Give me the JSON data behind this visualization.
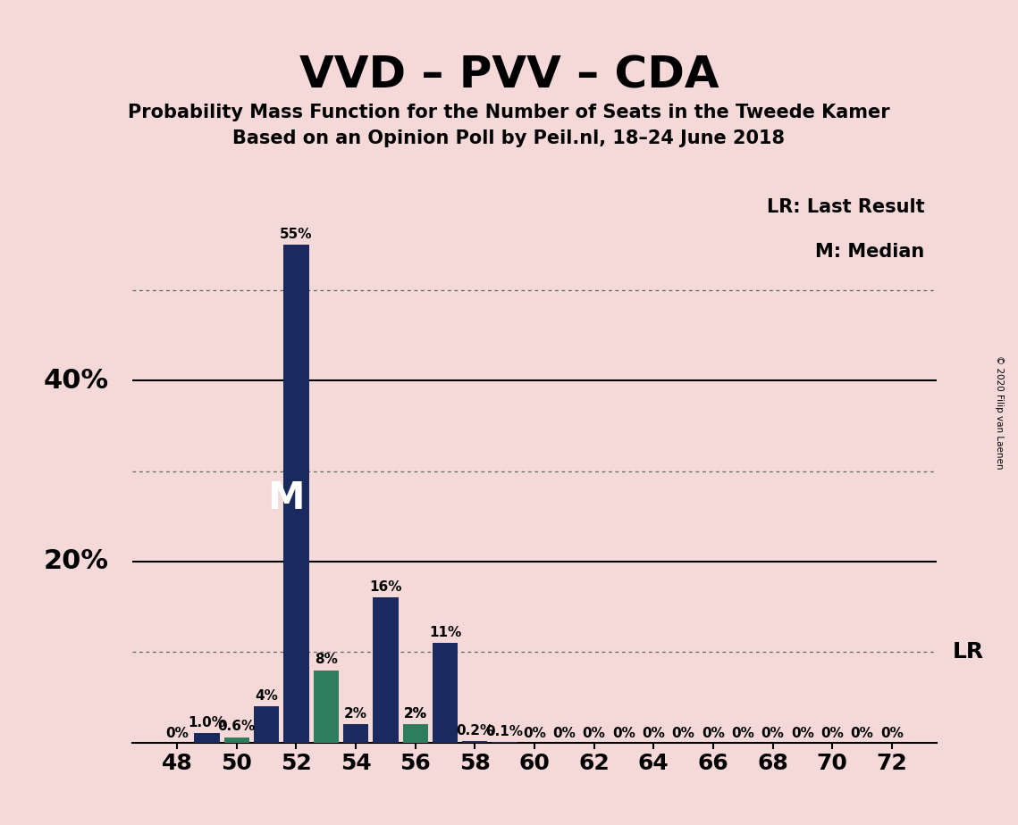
{
  "title": "VVD – PVV – CDA",
  "subtitle1": "Probability Mass Function for the Number of Seats in the Tweede Kamer",
  "subtitle2": "Based on an Opinion Poll by Peil.nl, 18–24 June 2018",
  "copyright": "© 2020 Filip van Laenen",
  "background_color": "#f5d9d9",
  "seats": [
    48,
    49,
    50,
    51,
    52,
    53,
    54,
    55,
    56,
    57,
    58,
    59,
    60,
    61,
    62,
    63,
    64,
    65,
    66,
    67,
    68,
    69,
    70,
    71,
    72
  ],
  "blue_values": [
    0.0,
    1.0,
    0.0,
    4.0,
    55.0,
    0.0,
    2.0,
    16.0,
    2.0,
    11.0,
    0.2,
    0.1,
    0.0,
    0.0,
    0.0,
    0.0,
    0.0,
    0.0,
    0.0,
    0.0,
    0.0,
    0.0,
    0.0,
    0.0,
    0.0
  ],
  "green_values": [
    0.0,
    0.0,
    0.6,
    0.0,
    0.0,
    8.0,
    0.0,
    0.0,
    2.0,
    0.0,
    0.0,
    0.0,
    0.0,
    0.0,
    0.0,
    0.0,
    0.0,
    0.0,
    0.0,
    0.0,
    0.0,
    0.0,
    0.0,
    0.0,
    0.0
  ],
  "blue_labels": [
    "0%",
    "1.0%",
    "",
    "4%",
    "55%",
    "",
    "2%",
    "16%",
    "2%",
    "11%",
    "0.2%",
    "0.1%",
    "0%",
    "0%",
    "0%",
    "0%",
    "0%",
    "0%",
    "0%",
    "0%",
    "0%",
    "0%",
    "0%",
    "0%",
    "0%"
  ],
  "green_labels": [
    "",
    "",
    "0.6%",
    "",
    "",
    "8%",
    "",
    "",
    "2%",
    "",
    "",
    "",
    "",
    "",
    "",
    "",
    "",
    "",
    "",
    "",
    "",
    "",
    "",
    "",
    ""
  ],
  "bar_color_blue": "#1a2a5e",
  "bar_color_green": "#2e7d5e",
  "median_seat": 52,
  "lr_seat": 58,
  "xtick_seats": [
    48,
    50,
    52,
    54,
    56,
    58,
    60,
    62,
    64,
    66,
    68,
    70,
    72
  ],
  "solid_lines": [
    20,
    40
  ],
  "dotted_lines": [
    10,
    30,
    50
  ],
  "lr_label": "LR",
  "lr_legend": "LR: Last Result",
  "m_legend": "M: Median",
  "title_fontsize": 36,
  "subtitle_fontsize": 15,
  "axis_fontsize": 18,
  "label_fontsize": 11,
  "ylim": [
    0,
    62
  ],
  "xlim": [
    46.5,
    73.5
  ]
}
